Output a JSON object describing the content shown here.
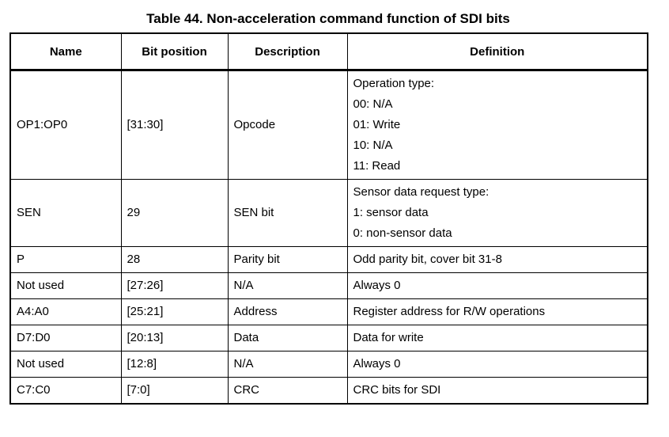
{
  "title": "Table 44. Non-acceleration command function of SDI bits",
  "table": {
    "headers": [
      "Name",
      "Bit position",
      "Description",
      "Definition"
    ],
    "rows": [
      {
        "name": "OP1:OP0",
        "bit_position": "[31:30]",
        "description": "Opcode",
        "definition": [
          "Operation type:",
          "00: N/A",
          "01: Write",
          "10: N/A",
          "11: Read"
        ]
      },
      {
        "name": "SEN",
        "bit_position": "29",
        "description": "SEN bit",
        "definition": [
          "Sensor data request type:",
          "1: sensor data",
          "0: non-sensor data"
        ]
      },
      {
        "name": "P",
        "bit_position": "28",
        "description": "Parity bit",
        "definition": [
          "Odd parity bit, cover bit 31-8"
        ]
      },
      {
        "name": "Not used",
        "bit_position": "[27:26]",
        "description": "N/A",
        "definition": [
          "Always 0"
        ]
      },
      {
        "name": "A4:A0",
        "bit_position": "[25:21]",
        "description": "Address",
        "definition": [
          "Register address for R/W operations"
        ]
      },
      {
        "name": "D7:D0",
        "bit_position": "[20:13]",
        "description": "Data",
        "definition": [
          "Data for write"
        ]
      },
      {
        "name": "Not used",
        "bit_position": "[12:8]",
        "description": "N/A",
        "definition": [
          "Always 0"
        ]
      },
      {
        "name": "C7:C0",
        "bit_position": "[7:0]",
        "description": "CRC",
        "definition": [
          "CRC bits for SDI"
        ]
      }
    ]
  },
  "colors": {
    "text": "#000000",
    "border": "#000000",
    "background": "#ffffff"
  }
}
